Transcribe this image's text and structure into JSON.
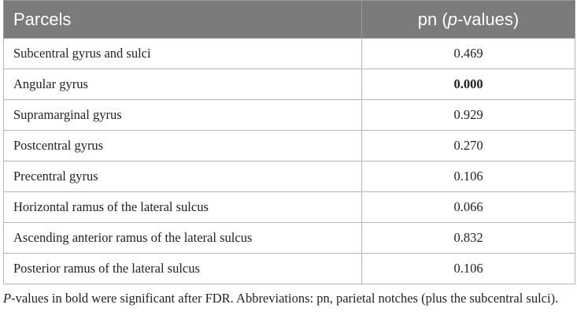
{
  "table": {
    "header": {
      "parcels": "Parcels",
      "pvalues": [
        "pn (",
        "p",
        "-values)"
      ]
    },
    "rows": [
      {
        "parcel": "Subcentral gyrus and sulci",
        "value": "0.469",
        "bold": false
      },
      {
        "parcel": "Angular gyrus",
        "value": "0.000",
        "bold": true
      },
      {
        "parcel": "Supramarginal gyrus",
        "value": "0.929",
        "bold": false
      },
      {
        "parcel": "Postcentral gyrus",
        "value": "0.270",
        "bold": false
      },
      {
        "parcel": "Precentral gyrus",
        "value": "0.106",
        "bold": false
      },
      {
        "parcel": "Horizontal ramus of the lateral sulcus",
        "value": "0.066",
        "bold": false
      },
      {
        "parcel": "Ascending anterior ramus of the lateral sulcus",
        "value": "0.832",
        "bold": false
      },
      {
        "parcel": "Posterior ramus of the lateral sulcus",
        "value": "0.106",
        "bold": false
      }
    ]
  },
  "footnote": [
    "P",
    "-values in bold were significant after FDR. Abbreviations: pn, parietal notches (plus the subcentral sulci)."
  ]
}
